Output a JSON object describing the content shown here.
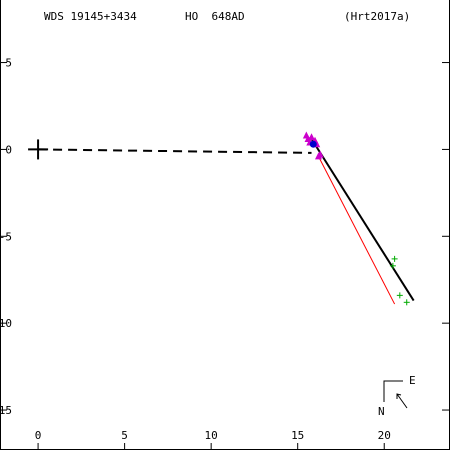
{
  "header": {
    "wds_id": "WDS 19145+3434",
    "discoverer": "HO  648AD",
    "reference": "(Hrt2017a)"
  },
  "compass": {
    "north": "N",
    "east": "E"
  },
  "colors": {
    "axes": "#000000",
    "orbit": "#000000",
    "residual_line": "#ff0000",
    "magenta_points": "#cc00cc",
    "green_points": "#00aa00",
    "latest_point": "#0000cc"
  },
  "chart_data": {
    "type": "scatter",
    "xlim": [
      -2.2,
      23.8
    ],
    "ylim": [
      -17.3,
      8.6
    ],
    "x_ticks": [
      {
        "value": 0,
        "label": "0"
      },
      {
        "value": 5,
        "label": "5"
      },
      {
        "value": 10,
        "label": "10"
      },
      {
        "value": 15,
        "label": "15"
      },
      {
        "value": 20,
        "label": "20"
      }
    ],
    "y_ticks": [
      {
        "value": 5,
        "label": "5"
      },
      {
        "value": 0,
        "label": "0"
      },
      {
        "value": -5,
        "label": "-5"
      },
      {
        "value": -10,
        "label": "-10"
      },
      {
        "value": -15,
        "label": "-15"
      }
    ],
    "primary": {
      "x": 0,
      "y": 0
    },
    "node_line": [
      [
        0,
        0
      ],
      [
        15.8,
        -0.2
      ]
    ],
    "orbit_line": [
      [
        15.8,
        0.6
      ],
      [
        21.7,
        -8.7
      ]
    ],
    "residual_line": [
      [
        16.2,
        -0.4
      ],
      [
        20.6,
        -8.9
      ]
    ],
    "series": [
      {
        "marker": "triangle",
        "color": "#cc00cc",
        "points": [
          [
            15.5,
            0.8
          ],
          [
            15.6,
            0.6
          ],
          [
            15.8,
            0.7
          ],
          [
            15.7,
            0.4
          ],
          [
            16.0,
            0.5
          ],
          [
            16.1,
            0.3
          ],
          [
            16.3,
            -0.3
          ],
          [
            16.2,
            -0.4
          ]
        ]
      },
      {
        "marker": "plus",
        "color": "#00aa00",
        "points": [
          [
            20.6,
            -6.3
          ],
          [
            20.5,
            -6.7
          ],
          [
            20.9,
            -8.4
          ],
          [
            21.3,
            -8.8
          ]
        ]
      },
      {
        "marker": "dot",
        "color": "#0000cc",
        "points": [
          [
            15.9,
            0.3
          ]
        ]
      }
    ]
  }
}
